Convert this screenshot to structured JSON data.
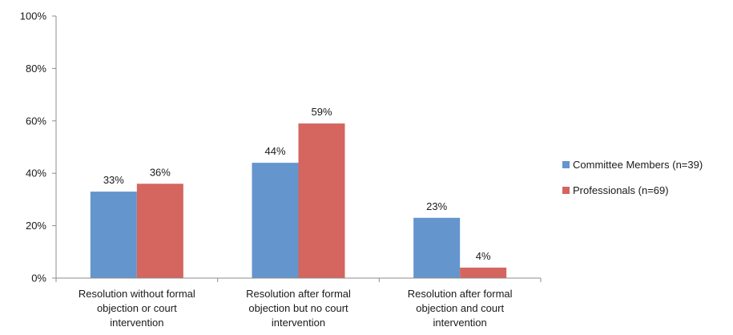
{
  "chart_data": {
    "type": "bar",
    "categories": [
      [
        "Resolution without formal",
        "objection or court",
        "intervention"
      ],
      [
        "Resolution after formal",
        "objection but no court",
        "intervention"
      ],
      [
        "Resolution after formal",
        "objection and court",
        "intervention"
      ]
    ],
    "series": [
      {
        "name": "Committee Members (n=39)",
        "color": "#6495cd",
        "values": [
          33,
          44,
          23
        ],
        "labels": [
          "33%",
          "44%",
          "23%"
        ]
      },
      {
        "name": "Professionals (n=69)",
        "color": "#d4655f",
        "values": [
          36,
          59,
          4
        ],
        "labels": [
          "36%",
          "59%",
          "4%"
        ]
      }
    ],
    "ylim": [
      0,
      100
    ],
    "yticks": [
      "0%",
      "20%",
      "40%",
      "60%",
      "80%",
      "100%"
    ],
    "yticks_values": [
      0,
      20,
      40,
      60,
      80,
      100
    ],
    "grid": false,
    "legend_position": "right"
  }
}
